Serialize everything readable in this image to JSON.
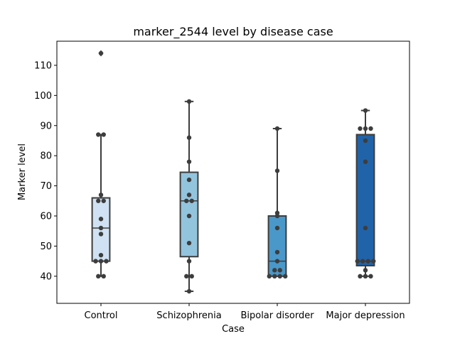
{
  "chart_data": {
    "type": "box",
    "title": "marker_2544 level by disease case",
    "xlabel": "Case",
    "ylabel": "Marker level",
    "ylim": [
      31,
      118
    ],
    "yticks": [
      40,
      50,
      60,
      70,
      80,
      90,
      100,
      110
    ],
    "grid": false,
    "legend": "none",
    "categories": [
      "Control",
      "Schizophrenia",
      "Bipolar disorder",
      "Major depression"
    ],
    "colors": [
      "#cfe1f2",
      "#93c4de",
      "#4a98c9",
      "#2163a8"
    ],
    "edge_color": "#3d3d3d",
    "boxes": [
      {
        "q1": 45,
        "median": 56,
        "q3": 66,
        "whisker_low": 40,
        "whisker_high": 87,
        "outliers": [
          114
        ]
      },
      {
        "q1": 46.5,
        "median": 65,
        "q3": 74.5,
        "whisker_low": 35,
        "whisker_high": 98,
        "outliers": []
      },
      {
        "q1": 40,
        "median": 45,
        "q3": 60,
        "whisker_low": 40,
        "whisker_high": 89,
        "outliers": []
      },
      {
        "q1": 43.5,
        "median": 45,
        "q3": 87,
        "whisker_low": 40,
        "whisker_high": 95,
        "outliers": []
      }
    ],
    "points": [
      [
        40,
        40,
        45,
        45,
        45,
        47,
        54,
        56,
        59,
        65,
        65,
        67,
        87,
        87,
        114
      ],
      [
        35,
        40,
        40,
        45,
        51,
        60,
        65,
        65,
        67,
        72,
        78,
        86,
        98
      ],
      [
        40,
        40,
        40,
        40,
        42,
        42,
        45,
        48,
        56,
        60,
        61,
        75,
        89
      ],
      [
        40,
        40,
        40,
        42,
        45,
        45,
        45,
        45,
        56,
        78,
        85,
        89,
        89,
        89,
        95
      ]
    ]
  }
}
